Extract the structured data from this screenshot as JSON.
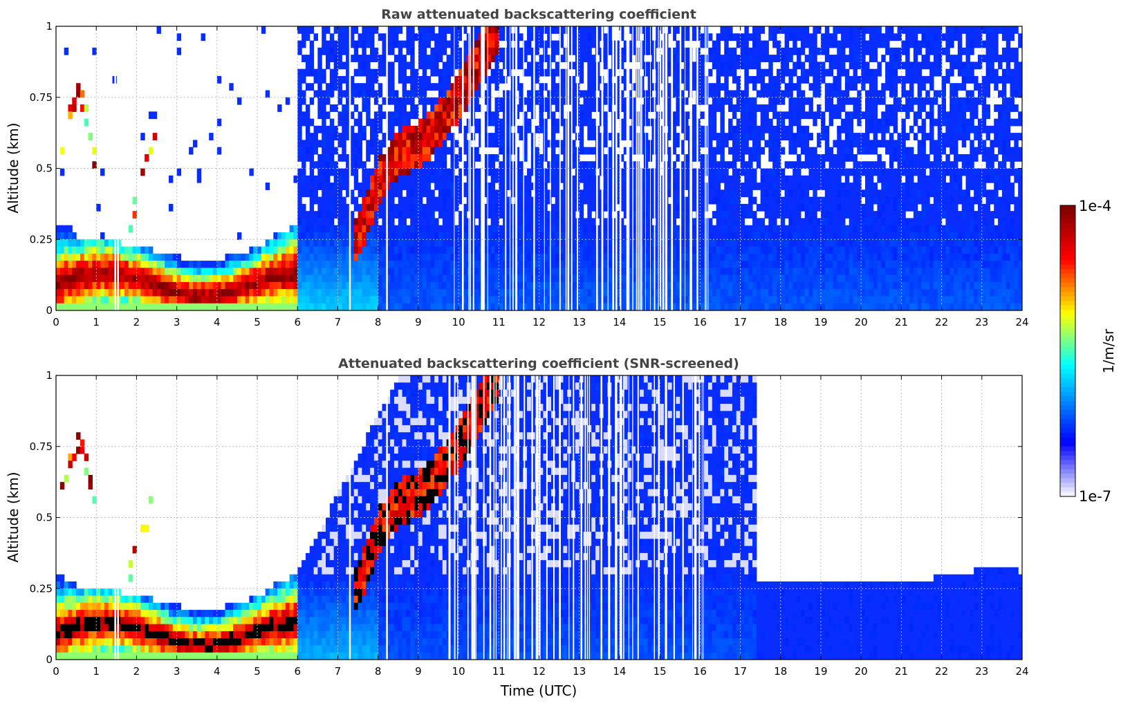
{
  "colors": {
    "jet_stops": [
      "#f2f2ff",
      "#0000ff",
      "#00ffff",
      "#ffff00",
      "#ff0000",
      "#800000"
    ],
    "background": "#ffffff",
    "low_value_fill": "#0a2dff",
    "title_color": "#444444"
  },
  "chart_data": [
    {
      "type": "heatmap",
      "title": "Raw attenuated backscattering coefficient",
      "xlabel": "",
      "ylabel": "Altitude (km)",
      "xlim": [
        0,
        24
      ],
      "ylim": [
        0,
        1
      ],
      "x_ticks": [
        "0",
        "1",
        "2",
        "3",
        "4",
        "5",
        "6",
        "7",
        "8",
        "9",
        "10",
        "11",
        "12",
        "13",
        "14",
        "15",
        "16",
        "17",
        "18",
        "19",
        "20",
        "21",
        "22",
        "23",
        "24"
      ],
      "y_ticks": [
        "0",
        "0.25",
        "0.5",
        "0.75",
        "1"
      ],
      "grid": true,
      "colorscale": "jet",
      "log_scale": true,
      "boundary_layer_top_km": [
        [
          0.0,
          0.3
        ],
        [
          0.5,
          0.26
        ],
        [
          1.0,
          0.25
        ],
        [
          1.5,
          0.24
        ],
        [
          2.0,
          0.22
        ],
        [
          2.5,
          0.21
        ],
        [
          3.0,
          0.19
        ],
        [
          3.5,
          0.18
        ],
        [
          4.0,
          0.18
        ],
        [
          4.5,
          0.2
        ],
        [
          5.0,
          0.22
        ],
        [
          5.5,
          0.27
        ],
        [
          6.0,
          0.3
        ]
      ],
      "rising_plume_km": [
        [
          7.5,
          0.25
        ],
        [
          8.0,
          0.45
        ],
        [
          8.5,
          0.55
        ],
        [
          9.0,
          0.58
        ],
        [
          9.5,
          0.65
        ],
        [
          10.0,
          0.75
        ],
        [
          10.5,
          0.88
        ],
        [
          11.0,
          1.0
        ]
      ],
      "noise_onset_hour": 6
    },
    {
      "type": "heatmap",
      "title": "Attenuated backscattering coefficient (SNR-screened)",
      "xlabel": "Time (UTC)",
      "ylabel": "Altitude (km)",
      "xlim": [
        0,
        24
      ],
      "ylim": [
        0,
        1
      ],
      "x_ticks": [
        "0",
        "1",
        "2",
        "3",
        "4",
        "5",
        "6",
        "7",
        "8",
        "9",
        "10",
        "11",
        "12",
        "13",
        "14",
        "15",
        "16",
        "17",
        "18",
        "19",
        "20",
        "21",
        "22",
        "23",
        "24"
      ],
      "y_ticks": [
        "0",
        "0.25",
        "0.5",
        "0.75",
        "1"
      ],
      "grid": true,
      "colorscale": "jet",
      "log_scale": true,
      "screened_top_km": [
        [
          17.4,
          0.28
        ],
        [
          18.0,
          0.28
        ],
        [
          19.0,
          0.27
        ],
        [
          20.0,
          0.28
        ],
        [
          21.0,
          0.28
        ],
        [
          22.0,
          0.29
        ],
        [
          22.5,
          0.3
        ],
        [
          23.0,
          0.32
        ],
        [
          23.5,
          0.33
        ],
        [
          24.0,
          0.31
        ]
      ]
    }
  ],
  "colorbar": {
    "label": "1/m/sr",
    "max_label": "1e-4",
    "min_label": "1e-7",
    "min_value": 1e-07,
    "max_value": 0.0001
  }
}
